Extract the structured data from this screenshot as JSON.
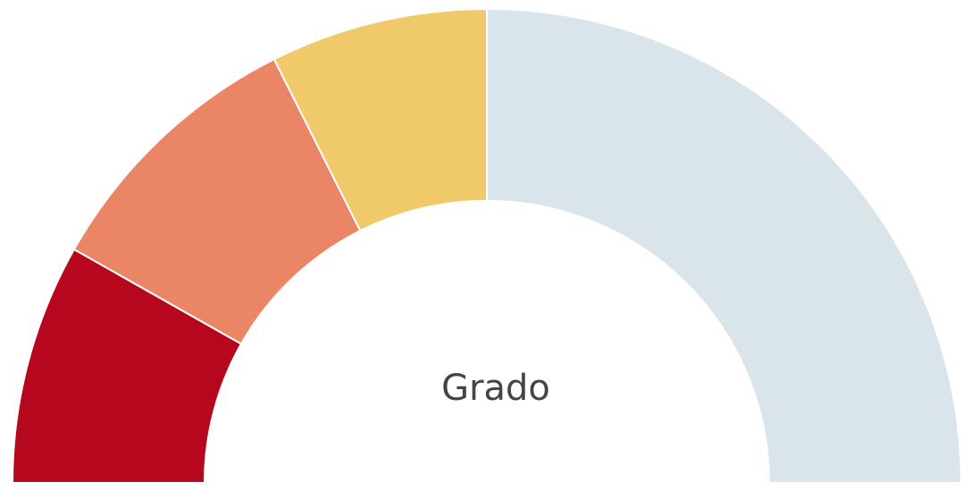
{
  "chart_data": {
    "type": "donut",
    "title": "Grado",
    "values": [
      16.4,
      18.8,
      14.8,
      50
    ],
    "colors": [
      "#b5081f",
      "#ea8566",
      "#efc96a",
      "#d9e4eb"
    ],
    "half": true
  }
}
